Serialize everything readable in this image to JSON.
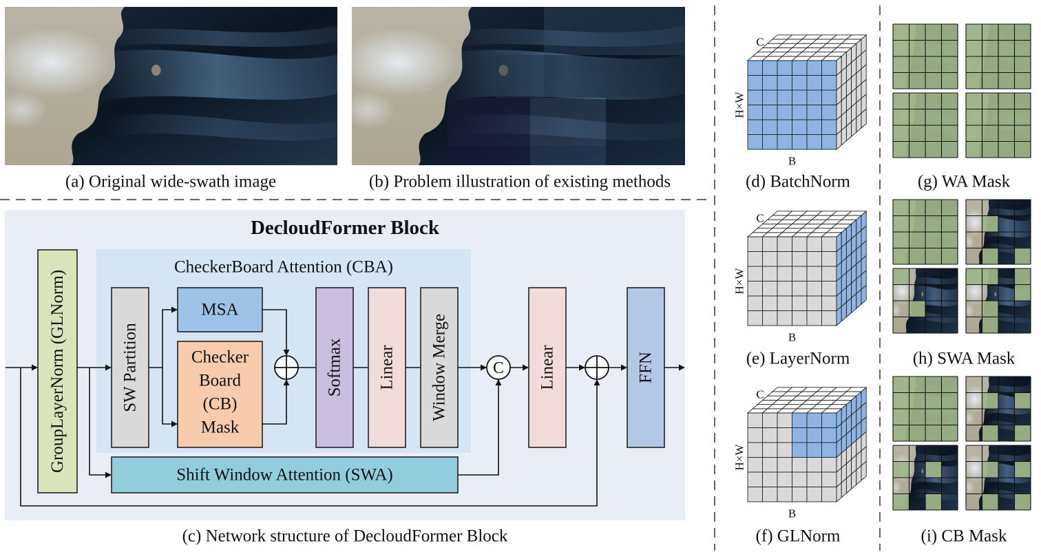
{
  "captions": {
    "a": "(a) Original wide-swath image",
    "b": "(b) Problem illustration of existing methods",
    "c": "(c) Network structure of  DecloudFormer Block",
    "d": "(d) BatchNorm",
    "e": "(e) LayerNorm",
    "f": "(f) GLNorm",
    "g": "(g) WA Mask",
    "h": "(h) SWA Mask",
    "i": "(i) CB Mask"
  },
  "block": {
    "title": "DecloudFormer Block",
    "cba_title": "CheckerBoard Attention (CBA)",
    "glnorm": "GroupLayerNorm (GLNorm)",
    "sw_partition": "SW Partition",
    "msa": "MSA",
    "cb_mask_lines": [
      "Checker",
      "Board",
      "(CB)",
      "Mask"
    ],
    "softmax": "Softmax",
    "linear1": "Linear",
    "window_merge": "Window Merge",
    "concat": "C",
    "linear2": "Linear",
    "ffn": "FFN",
    "swa": "Shift Window Attention (SWA)"
  },
  "cube_axes": {
    "c": "C",
    "hw": "H×W",
    "b": "B"
  },
  "colors": {
    "panel_bg": "#e8edf6",
    "cba_bg": "#d6e5f3",
    "gl_green": "#d8e4bc",
    "gray_box": "#d9d9d9",
    "msa_blue": "#9dc3e6",
    "cb_orange": "#f8cbad",
    "softmax_purple": "#c9bedd",
    "linear_pink": "#f2dcdb",
    "ffn_blue": "#b4c7e7",
    "swa_teal": "#92cddc",
    "cube_blue": "#8eb4e3",
    "cube_gray": "#d9d9d9",
    "mask_green": "#9fb58a"
  },
  "masks": {
    "wa": [
      [
        1,
        1,
        1,
        1,
        1,
        1,
        1,
        1,
        1,
        1,
        1,
        1,
        1,
        1,
        1,
        1
      ],
      [
        1,
        1,
        1,
        1,
        1,
        1,
        1,
        1,
        1,
        1,
        1,
        1,
        1,
        1,
        1,
        1
      ],
      [
        1,
        1,
        1,
        1,
        1,
        1,
        1,
        1,
        1,
        1,
        1,
        1,
        1,
        1,
        1,
        1
      ],
      [
        1,
        1,
        1,
        1,
        1,
        1,
        1,
        1,
        1,
        1,
        1,
        1,
        1,
        1,
        1,
        1
      ]
    ],
    "swa": [
      [
        1,
        1,
        1,
        1,
        1,
        1,
        1,
        1,
        1,
        1,
        1,
        1,
        1,
        1,
        1,
        1
      ],
      [
        0,
        0,
        0,
        0,
        0,
        1,
        0,
        0,
        0,
        0,
        0,
        0,
        0,
        1,
        0,
        1
      ],
      [
        1,
        0,
        0,
        0,
        0,
        0,
        0,
        0,
        0,
        1,
        0,
        0,
        0,
        0,
        0,
        0
      ],
      [
        1,
        1,
        0,
        1,
        0,
        0,
        0,
        1,
        0,
        1,
        0,
        0,
        0,
        1,
        0,
        0
      ]
    ],
    "cb": [
      [
        1,
        1,
        1,
        1,
        1,
        1,
        1,
        1,
        1,
        1,
        1,
        1,
        1,
        1,
        1,
        1
      ],
      [
        0,
        0,
        0,
        0,
        0,
        1,
        0,
        1,
        0,
        0,
        0,
        0,
        0,
        1,
        0,
        1
      ],
      [
        0,
        0,
        0,
        0,
        1,
        0,
        1,
        0,
        0,
        0,
        0,
        0,
        1,
        0,
        1,
        0
      ],
      [
        0,
        0,
        0,
        0,
        0,
        1,
        0,
        1,
        0,
        0,
        0,
        0,
        0,
        1,
        0,
        1
      ]
    ]
  }
}
